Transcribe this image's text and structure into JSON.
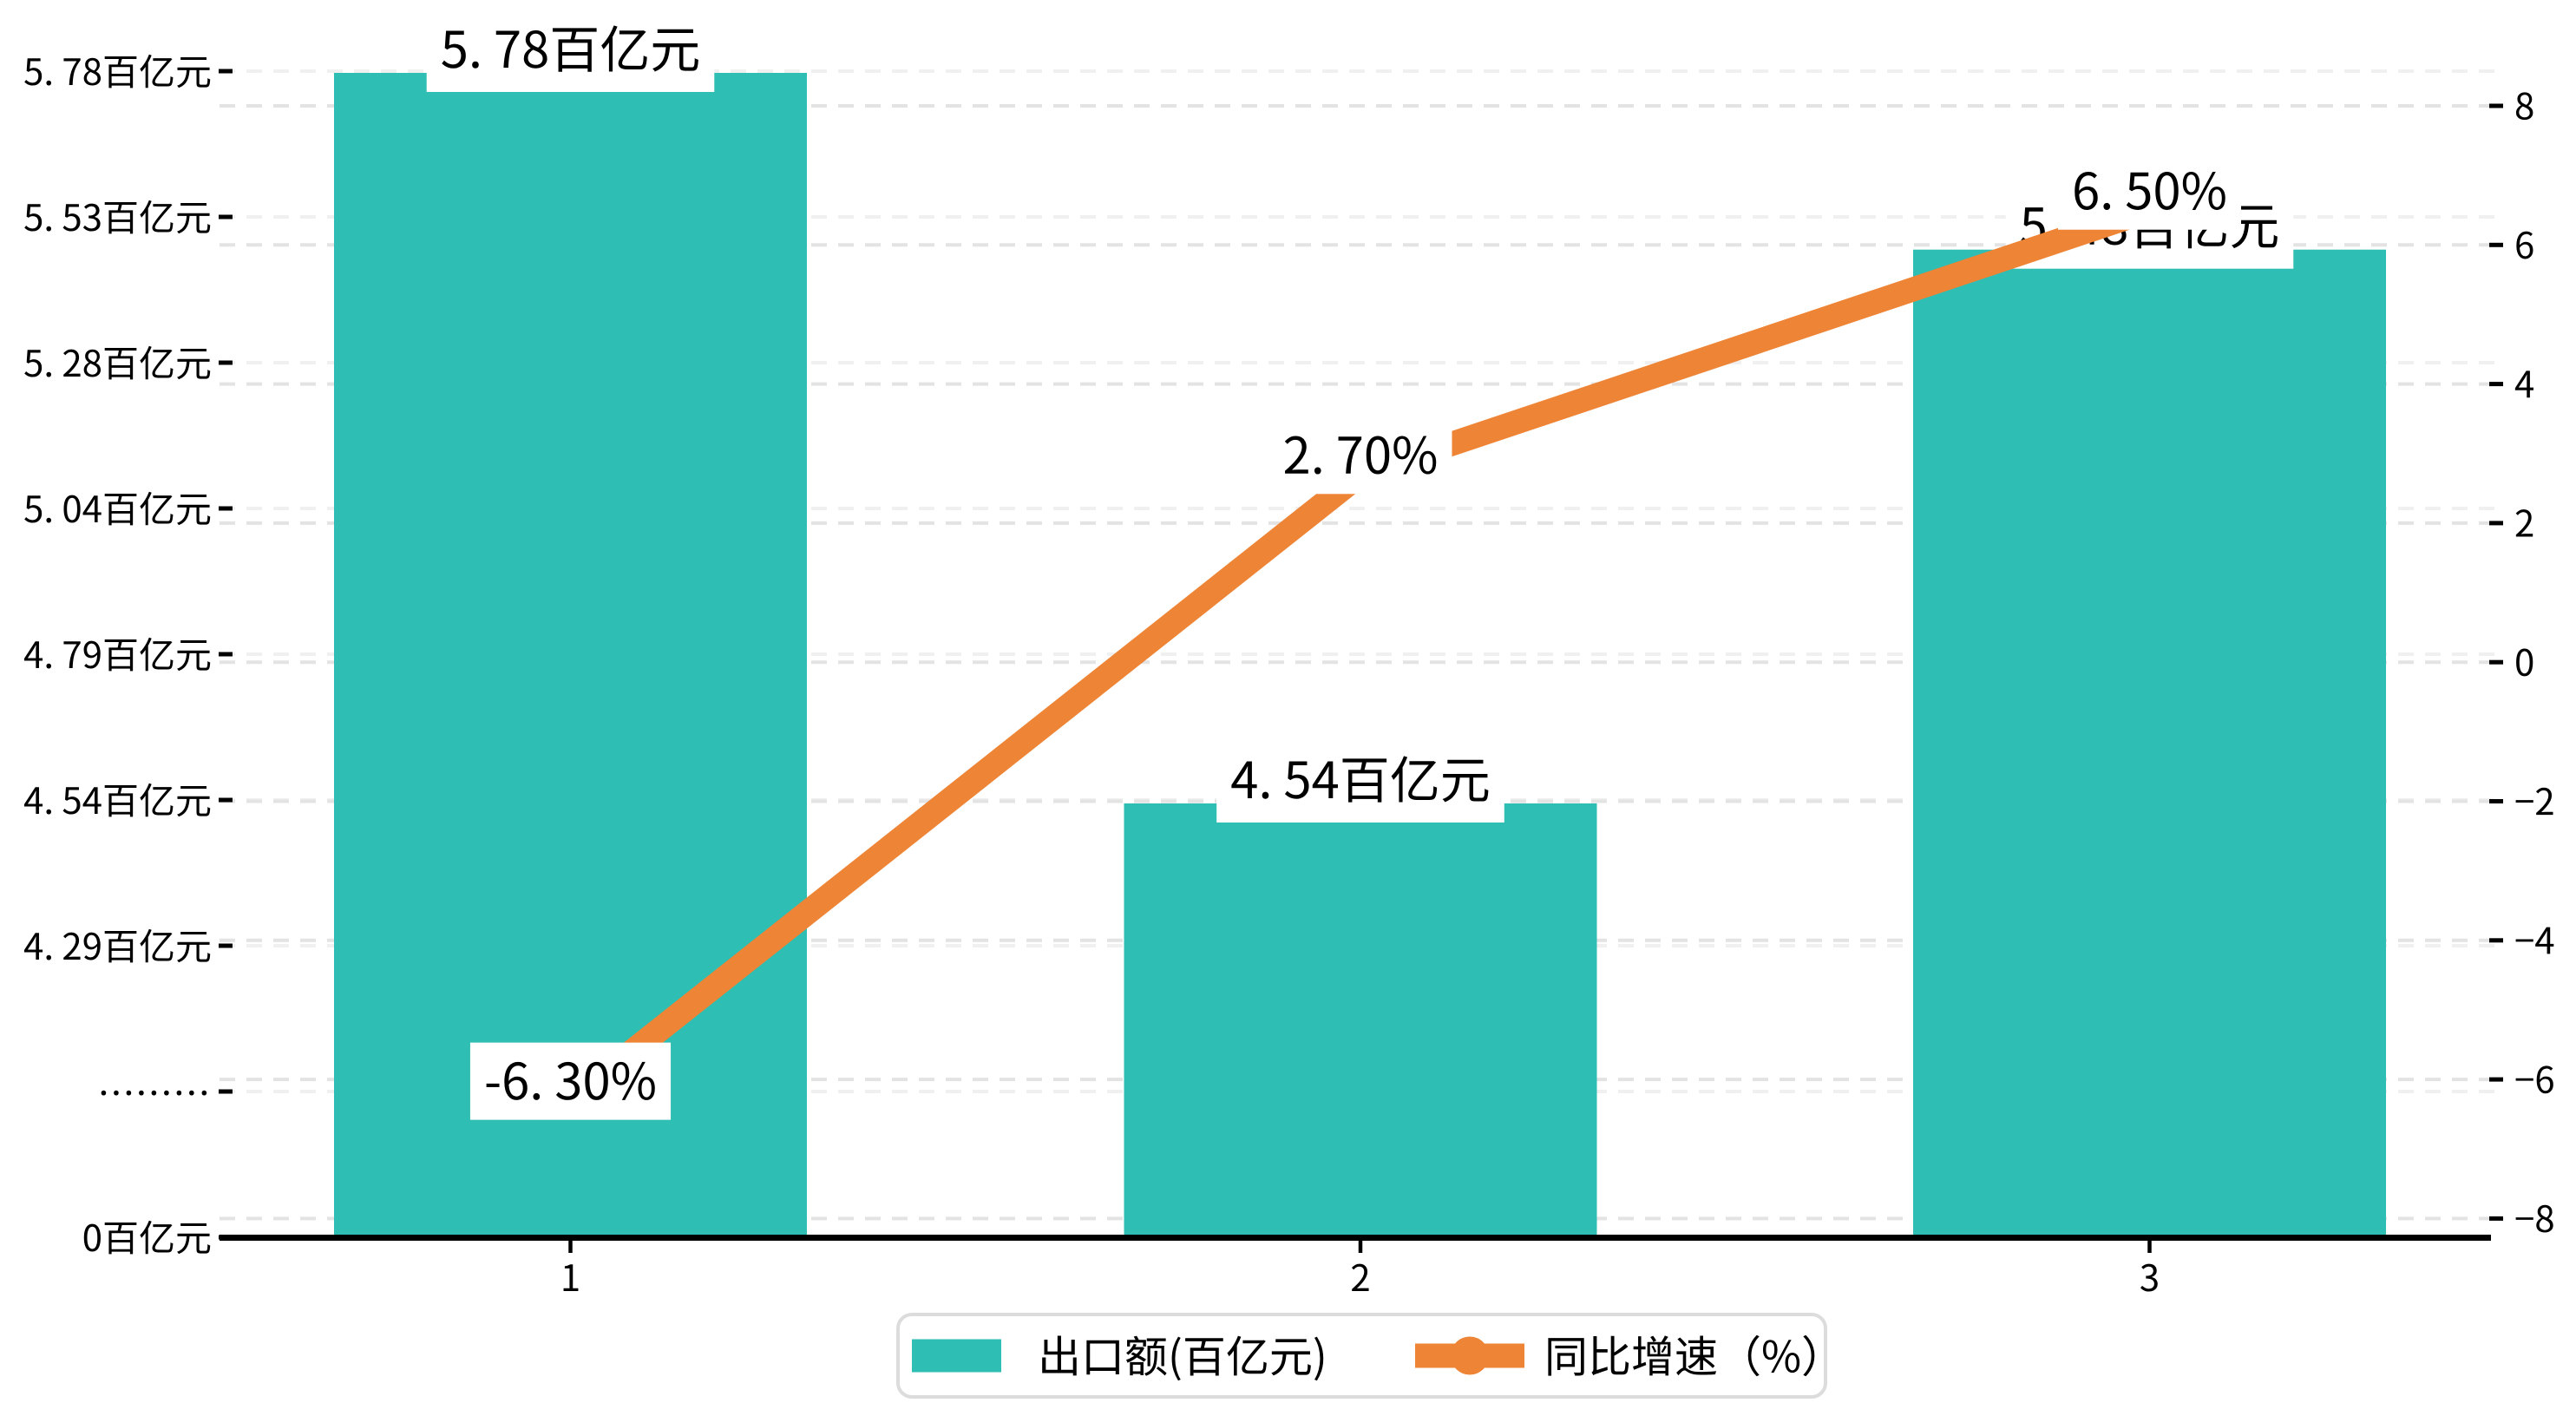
{
  "chart_data": {
    "type": "bar+line",
    "title": "",
    "categories": [
      "1",
      "2",
      "3"
    ],
    "series": [
      {
        "name": "出口额(百亿元)",
        "type": "bar",
        "unit": "百亿元",
        "values": [
          5.78,
          4.54,
          5.48
        ],
        "labels": [
          "5.78百亿元",
          "4.54百亿元",
          "5.48百亿元"
        ],
        "color": "#2fbeb3"
      },
      {
        "name": "同比增速（%）",
        "type": "line",
        "unit": "%",
        "values": [
          -6.3,
          2.7,
          6.5
        ],
        "labels": [
          "-6.30%",
          "2.70%",
          "6.50%"
        ],
        "color": "#ee8435"
      }
    ],
    "left_axis": {
      "tick_labels": [
        "5.78百亿元",
        "5.53百亿元",
        "5.28百亿元",
        "5.04百亿元",
        "4.79百亿元",
        "4.54百亿元",
        "4.29百亿元",
        ".........",
        "0百亿元"
      ],
      "unit": "百亿元",
      "broken_axis": true,
      "range_shown": [
        0,
        5.78
      ]
    },
    "right_axis": {
      "tick_labels": [
        "8",
        "6",
        "4",
        "2",
        "0",
        "−2",
        "−4",
        "−6",
        "−8"
      ],
      "ticks": [
        8,
        6,
        4,
        2,
        0,
        -2,
        -4,
        -6,
        -8
      ],
      "ylim": [
        -8.4,
        8.5
      ]
    },
    "x_axis": {
      "tick_labels": [
        "1",
        "2",
        "3"
      ]
    },
    "legend": {
      "position": "bottom-center",
      "entries": [
        {
          "label": "出口额(百亿元)",
          "marker": "bar-swatch",
          "color": "#2fbeb3"
        },
        {
          "label": "同比增速（%）",
          "marker": "line-marker",
          "color": "#ee8435"
        }
      ]
    },
    "grid": true,
    "background": "#ffffff",
    "colors": {
      "bar": "#2fbeb3",
      "line": "#ee8435",
      "text": "#000000",
      "grid_left": "#f0f0f0",
      "grid_right": "#e3e3e3",
      "legend_border": "#dcdcdc"
    }
  }
}
